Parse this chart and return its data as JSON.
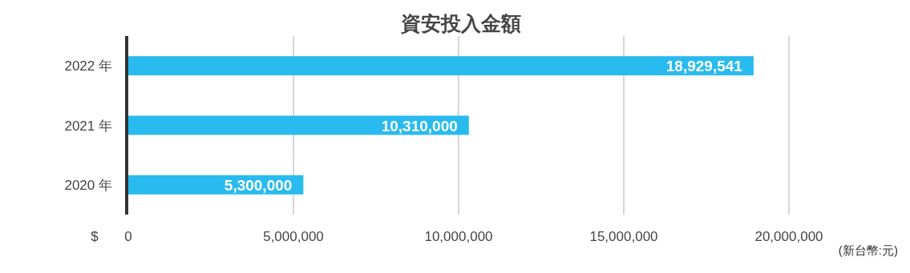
{
  "chart_data": {
    "type": "bar",
    "orientation": "horizontal",
    "title": "資安投入金額",
    "categories": [
      "2022 年",
      "2021 年",
      "2020 年"
    ],
    "values": [
      18929541,
      10310000,
      5300000
    ],
    "color": "#29bbef",
    "xlim": [
      0,
      20000000
    ],
    "xticks": [
      {
        "value": 0,
        "label": "0"
      },
      {
        "value": 5000000,
        "label": "5,000,000"
      },
      {
        "value": 10000000,
        "label": "10,000,000"
      },
      {
        "value": 15000000,
        "label": "15,000,000"
      },
      {
        "value": 20000000,
        "label": "20,000,000"
      }
    ],
    "grid": "x",
    "value_labels": [
      "18,929,541",
      "10,310,000",
      "5,300,000"
    ],
    "xlabel": "(新台幣:元)",
    "annotations": [
      "$"
    ]
  }
}
